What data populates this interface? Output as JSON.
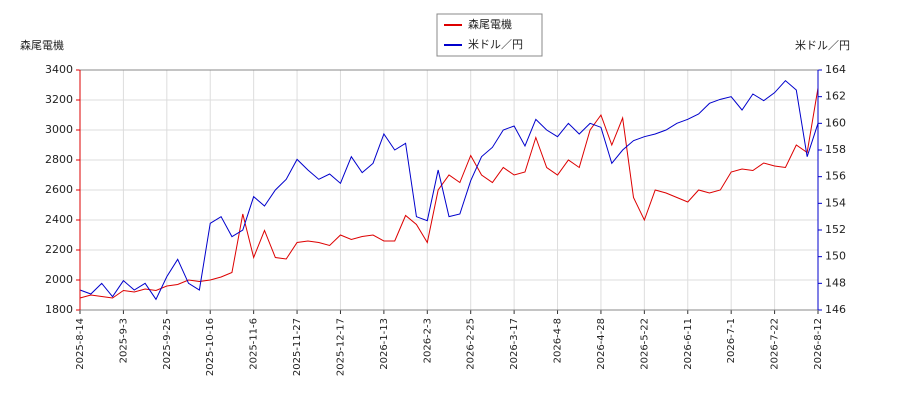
{
  "chart_data": {
    "type": "line",
    "y_label": "森尾電機",
    "y2_label": "米ドル／円",
    "categories": [
      "2025-8-14",
      null,
      null,
      null,
      "2025-9-3",
      null,
      null,
      null,
      "2025-9-25",
      null,
      null,
      null,
      "2025-10-16",
      null,
      null,
      null,
      "2025-11-6",
      null,
      null,
      null,
      "2025-11-27",
      null,
      null,
      null,
      "2025-12-17",
      null,
      null,
      null,
      "2026-1-13",
      null,
      null,
      null,
      "2026-2-3",
      null,
      null,
      null,
      "2026-2-25",
      null,
      null,
      null,
      "2026-3-17",
      null,
      null,
      null,
      "2026-4-8",
      null,
      null,
      null,
      "2026-4-28",
      null,
      null,
      null,
      "2026-5-22",
      null,
      null,
      null,
      "2026-6-11",
      null,
      null,
      null,
      "2026-7-1",
      null,
      null,
      null,
      "2026-7-22",
      null,
      null,
      null,
      "2026-8-12"
    ],
    "series": [
      {
        "name": "森尾電機",
        "color": "#dd0000",
        "axis": "y",
        "values": [
          1880,
          1900,
          1890,
          1880,
          1930,
          1920,
          1940,
          1930,
          1960,
          1970,
          2000,
          1990,
          2000,
          2020,
          2050,
          2440,
          2150,
          2330,
          2150,
          2140,
          2250,
          2260,
          2250,
          2230,
          2300,
          2270,
          2290,
          2300,
          2260,
          2260,
          2430,
          2370,
          2250,
          2600,
          2700,
          2650,
          2830,
          2700,
          2650,
          2750,
          2700,
          2720,
          2950,
          2750,
          2700,
          2800,
          2750,
          3000,
          3100,
          2900,
          3080,
          2550,
          2400,
          2600,
          2580,
          2550,
          2520,
          2600,
          2580,
          2600,
          2720,
          2740,
          2730,
          2780,
          2760,
          2750,
          2900,
          2850,
          3280
        ]
      },
      {
        "name": "米ドル／円",
        "color": "#0000cc",
        "axis": "y2",
        "values": [
          147.5,
          147.2,
          148,
          147,
          148.2,
          147.5,
          148,
          146.8,
          148.5,
          149.8,
          148,
          147.5,
          152.5,
          153,
          151.5,
          152,
          154.5,
          153.8,
          155,
          155.8,
          157.3,
          156.5,
          155.8,
          156.2,
          155.5,
          157.5,
          156.3,
          157,
          159.2,
          158,
          158.5,
          153,
          152.7,
          156.5,
          153,
          153.2,
          155.7,
          157.5,
          158.2,
          159.5,
          159.8,
          158.3,
          160.3,
          159.5,
          159,
          160,
          159.2,
          160,
          159.7,
          157,
          158,
          158.7,
          159,
          159.2,
          159.5,
          160,
          160.3,
          160.7,
          161.5,
          161.8,
          162,
          161,
          162.2,
          161.7,
          162.3,
          163.2,
          162.5,
          157.5,
          160
        ]
      }
    ],
    "ylim": [
      1800,
      3400
    ],
    "yticks": [
      1800,
      2000,
      2200,
      2400,
      2600,
      2800,
      3000,
      3200,
      3400
    ],
    "y2lim": [
      146,
      164
    ],
    "y2ticks": [
      146,
      148,
      150,
      152,
      154,
      156,
      158,
      160,
      162,
      164
    ],
    "grid": true
  }
}
